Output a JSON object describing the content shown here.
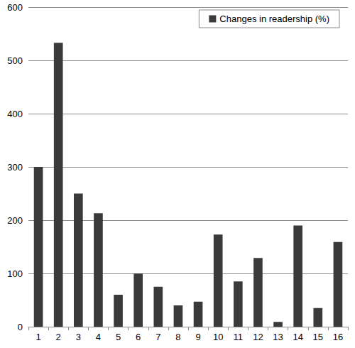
{
  "chart_data": {
    "type": "bar",
    "categories": [
      "1",
      "2",
      "3",
      "4",
      "5",
      "6",
      "7",
      "8",
      "9",
      "10",
      "11",
      "12",
      "13",
      "14",
      "15",
      "16"
    ],
    "series": [
      {
        "name": "Changes in readership (%)",
        "color": "#3a3a3a",
        "values": [
          300,
          533,
          250,
          213,
          60,
          100,
          75,
          40,
          47,
          173,
          85,
          129,
          9,
          190,
          35,
          159
        ]
      }
    ],
    "ylim": [
      0,
      600
    ],
    "yticks": [
      0,
      100,
      200,
      300,
      400,
      500,
      600
    ],
    "grid": true,
    "legend": "upper right"
  }
}
